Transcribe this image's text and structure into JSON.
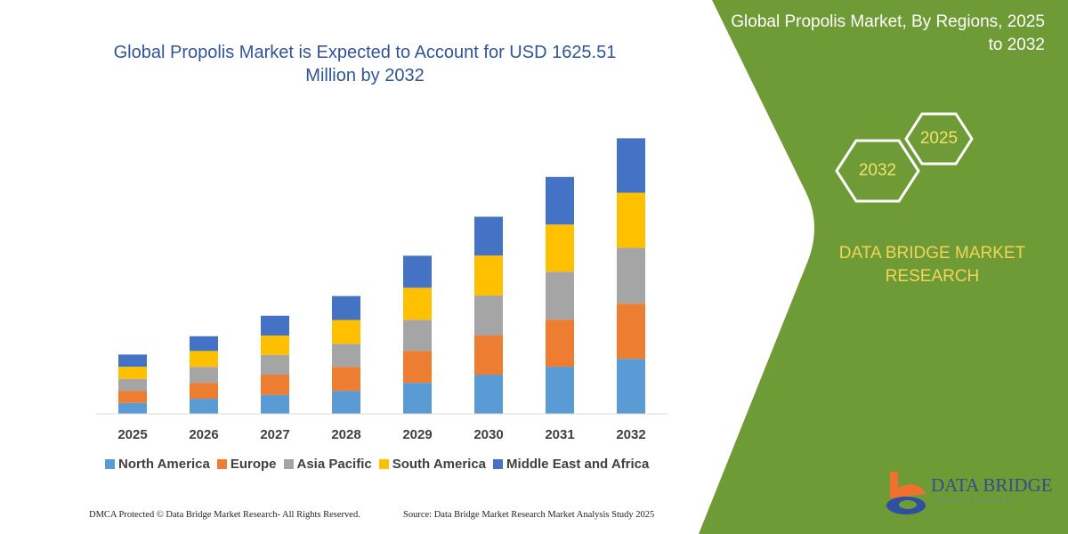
{
  "header": {
    "title": "Global Propolis Market is Expected to Account for USD 1625.51 Million by 2032"
  },
  "side_panel": {
    "title": "Global Propolis Market, By Regions, 2025 to 2032",
    "hex_start": "2025",
    "hex_end": "2032",
    "brand": "DATA BRIDGE MARKET RESEARCH",
    "logo_text": "DATA BRIDGE",
    "logo_sub": "MARKET RESEARCH",
    "color": "#6f9b37"
  },
  "footer": {
    "left": "DMCA Protected © Data Bridge Market Research-  All Rights Reserved.",
    "right": "Source: Data Bridge Market Research  Market Analysis Study 2025"
  },
  "chart_data": {
    "type": "bar",
    "stacked": true,
    "title": "Global Propolis Market is Expected to Account for USD 1625.51 Million by 2032",
    "xlabel": "",
    "ylabel": "",
    "y_axis_shown": false,
    "grid": false,
    "legend_position": "bottom",
    "unit": "USD Million (approx.)",
    "categories": [
      "2025",
      "2026",
      "2027",
      "2028",
      "2029",
      "2030",
      "2031",
      "2032"
    ],
    "series": [
      {
        "name": "North America",
        "color": "#5b9bd5",
        "values": [
          64,
          89,
          112,
          136,
          183,
          231,
          278,
          325
        ]
      },
      {
        "name": "Europe",
        "color": "#ed7d31",
        "values": [
          72,
          94,
          119,
          141,
          189,
          231,
          278,
          325
        ]
      },
      {
        "name": "Asia Pacific",
        "color": "#a5a5a5",
        "values": [
          70,
          94,
          117,
          136,
          183,
          236,
          283,
          330
        ]
      },
      {
        "name": "South America",
        "color": "#ffc000",
        "values": [
          72,
          94,
          114,
          141,
          189,
          236,
          278,
          325
        ]
      },
      {
        "name": "Middle East and Africa",
        "color": "#4472c4",
        "values": [
          72,
          87,
          117,
          141,
          189,
          229,
          281,
          321
        ]
      }
    ]
  }
}
